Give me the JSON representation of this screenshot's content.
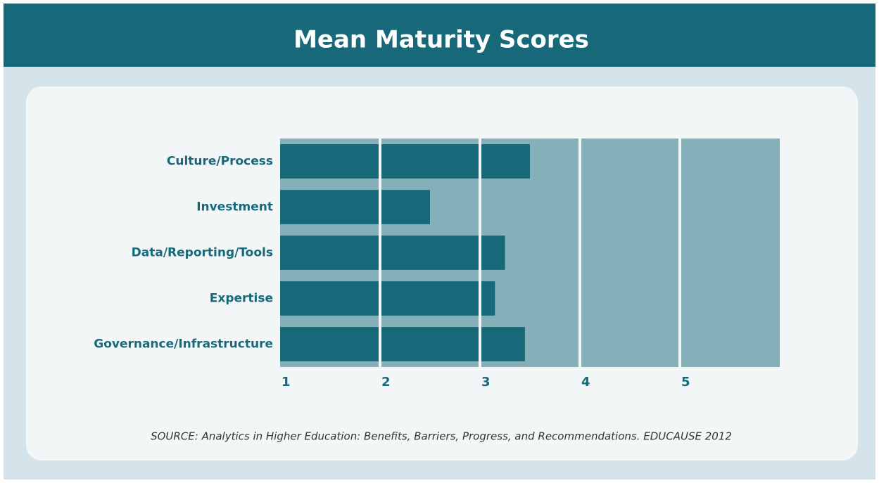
{
  "chart_data": {
    "type": "barh",
    "title": "Mean Maturity Scores",
    "categories": [
      "Culture/Process",
      "Investment",
      "Data/Reporting/Tools",
      "Expertise",
      "Governance/Infrastructure"
    ],
    "values": [
      3.5,
      2.5,
      3.25,
      3.15,
      3.45
    ],
    "color": "#17697a",
    "xlim": [
      1,
      6
    ],
    "xticks": [
      1,
      2,
      3,
      4,
      5
    ],
    "grid": true,
    "source": "SOURCE: Analytics in Higher Education: Benefits, Barriers, Progress, and Recommendations. EDUCAUSE 2012"
  }
}
